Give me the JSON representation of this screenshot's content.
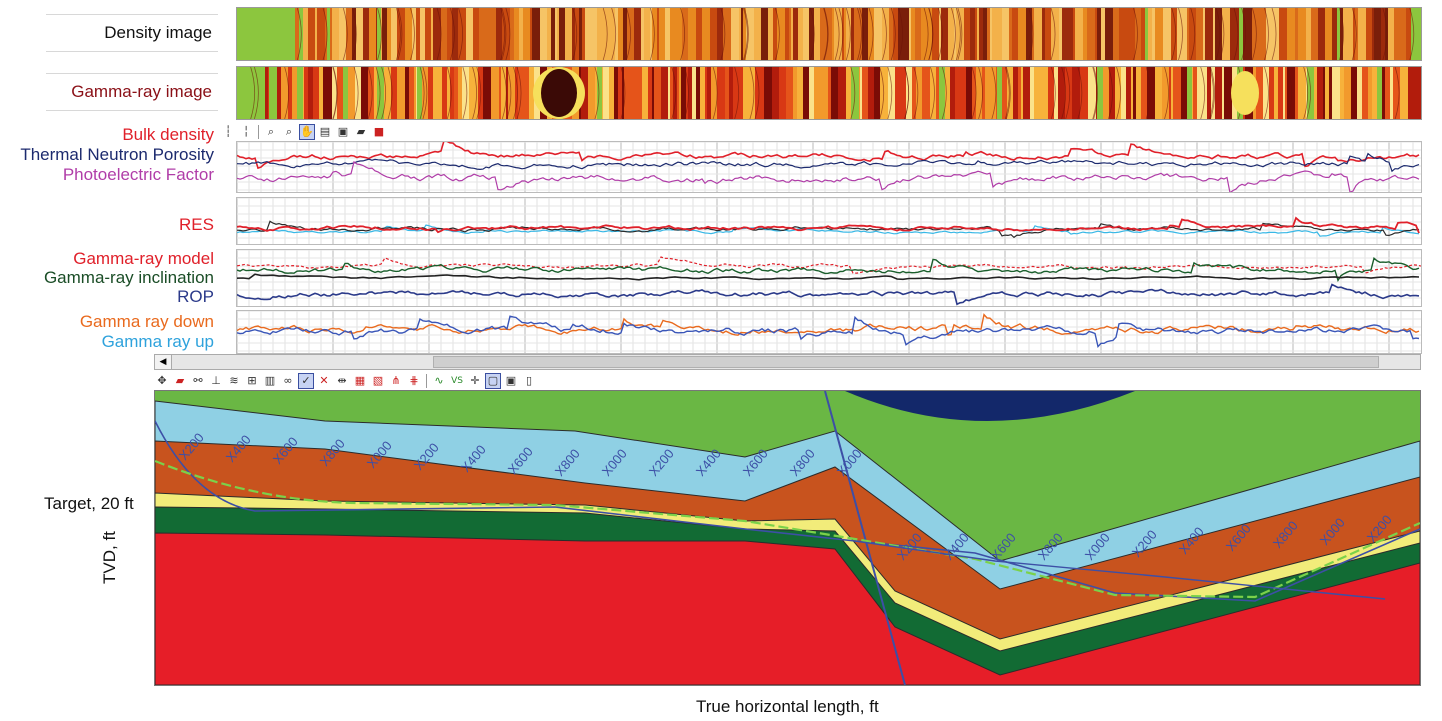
{
  "tracks": {
    "density_image": {
      "label": "Density image"
    },
    "gamma_image": {
      "label": "Gamma-ray image"
    },
    "logs1": {
      "labels": [
        "Bulk density",
        "Thermal Neutron Porosity",
        "Photoelectric Factor"
      ]
    },
    "logs2": {
      "labels": [
        "RES"
      ]
    },
    "logs3": {
      "labels": [
        "Gamma-ray model",
        "Gamma-ray inclination",
        "ROP"
      ]
    },
    "logs4": {
      "labels": [
        "Gamma ray down",
        "Gamma ray up"
      ]
    }
  },
  "colors": {
    "bulk_density": "#e0202a",
    "neutron_porosity": "#1c2a6e",
    "photoelectric": "#b03da8",
    "res": "#e0202a",
    "gr_model": "#e0202a",
    "gr_inclination": "#1a5f2c",
    "rop": "#2b3a8a",
    "gr_down": "#e96a1e",
    "gr_up": "#2ea2dc"
  },
  "toolbars": {
    "log_toolbar_icons": [
      "zoom-in-depth-icon",
      "zoom-out-depth-icon",
      "zoom-in-icon",
      "zoom-out-icon",
      "pan-icon",
      "properties-icon",
      "save-icon",
      "open-icon",
      "color-icon"
    ],
    "section_toolbar_icons": [
      "move-icon",
      "flag-icon",
      "binoculars-icon",
      "scale-icon",
      "layer-icon",
      "grid-icon",
      "table-icon",
      "link-icon",
      "check-icon",
      "delete-icon",
      "split-icon",
      "chart-icon",
      "chart2-icon",
      "fork-icon",
      "branch-icon",
      "curve-icon",
      "vs-icon",
      "cross-icon",
      "select-icon",
      "save-icon",
      "page-icon"
    ]
  },
  "section": {
    "target_label": "Target, 20 ft",
    "y_axis_label": "TVD, ft",
    "x_axis_label": "True horizontal length, ft",
    "md_markers_left": [
      "X200",
      "X400",
      "X600",
      "X800",
      "X000",
      "X200",
      "X400",
      "X600",
      "X800",
      "X000",
      "X200",
      "X400",
      "X600",
      "X800",
      "X000"
    ],
    "md_markers_right": [
      "X200",
      "X400",
      "X600",
      "X800",
      "X000",
      "X200",
      "X400",
      "X600",
      "X800",
      "X000",
      "X200"
    ]
  }
}
